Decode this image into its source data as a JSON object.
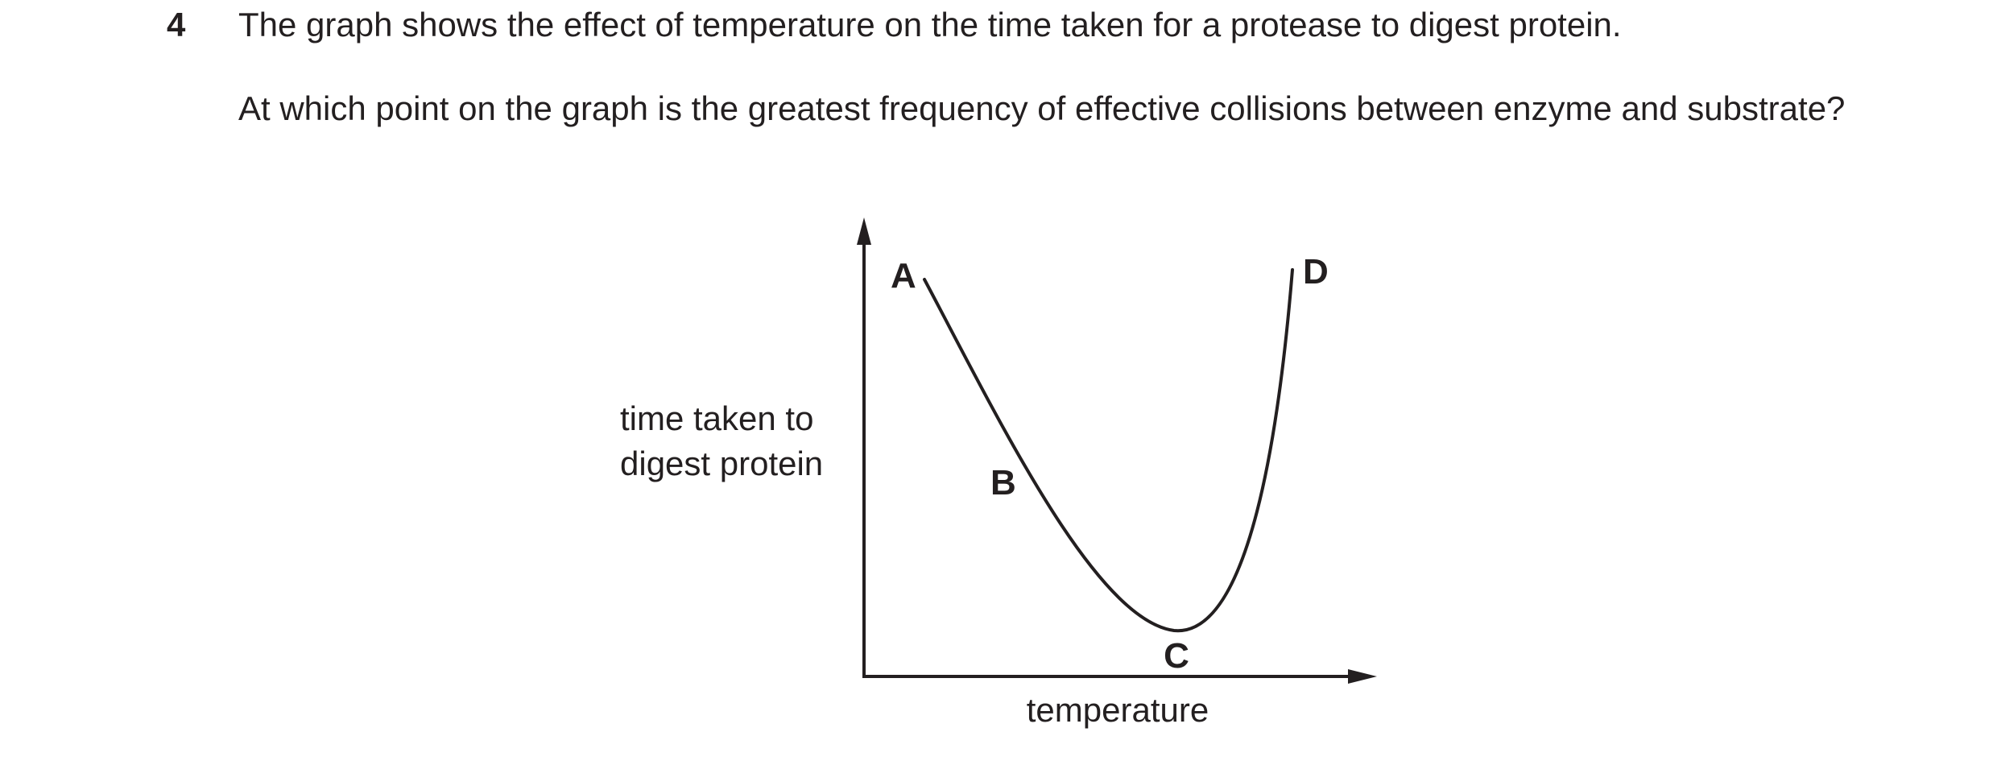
{
  "question": {
    "number": "4",
    "stem": "The graph shows the effect of temperature on the time taken for a protease to digest protein.",
    "ask": "At which point on the graph is the greatest frequency of effective collisions between enzyme and substrate?"
  },
  "chart_data": {
    "type": "line",
    "title": "",
    "xlabel": "temperature",
    "ylabel_lines": [
      "time taken to",
      "digest protein"
    ],
    "axis_values_shown": false,
    "grid": false,
    "legend": "none",
    "line_color": "#231f20",
    "points": [
      {
        "label": "A",
        "description": "start of curve, high time"
      },
      {
        "label": "B",
        "description": "on falling part of curve"
      },
      {
        "label": "C",
        "description": "minimum of curve"
      },
      {
        "label": "D",
        "description": "end of curve, high time"
      }
    ]
  }
}
